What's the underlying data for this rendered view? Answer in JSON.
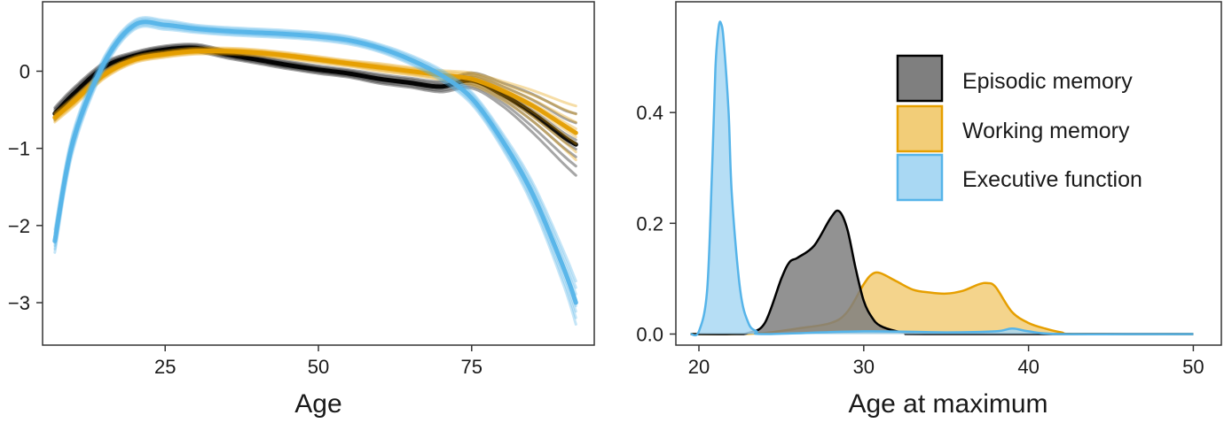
{
  "chart_data": [
    {
      "type": "line",
      "xlabel": "Age",
      "ylabel": "",
      "xlim": [
        5,
        95
      ],
      "ylim": [
        -3.55,
        0.9
      ],
      "xticks": [
        25,
        50,
        75
      ],
      "yticks": [
        0,
        -1,
        -2,
        -3
      ],
      "ytick_labels": [
        "0",
        "−1",
        "−2",
        "−3"
      ],
      "grid": false,
      "legend": "none",
      "colors": {
        "episodic": "#000000",
        "working": "#E69F00",
        "executive": "#56B4E9"
      },
      "series": [
        {
          "key": "episodic",
          "x": [
            7,
            10,
            15,
            20,
            25,
            30,
            35,
            40,
            45,
            50,
            55,
            60,
            65,
            70,
            75,
            80,
            85,
            90,
            92
          ],
          "values": [
            -0.55,
            -0.3,
            0.05,
            0.2,
            0.28,
            0.3,
            0.22,
            0.15,
            0.08,
            0.02,
            -0.03,
            -0.1,
            -0.15,
            -0.2,
            -0.12,
            -0.3,
            -0.55,
            -0.85,
            -0.95
          ],
          "band": [
            0.08,
            0.08,
            0.06,
            0.05,
            0.05,
            0.05,
            0.05,
            0.05,
            0.05,
            0.05,
            0.05,
            0.06,
            0.06,
            0.07,
            0.1,
            0.15,
            0.25,
            0.35,
            0.4
          ]
        },
        {
          "key": "working",
          "x": [
            7,
            10,
            15,
            20,
            25,
            30,
            35,
            40,
            45,
            50,
            55,
            60,
            65,
            70,
            75,
            80,
            85,
            90,
            92
          ],
          "values": [
            -0.6,
            -0.4,
            -0.05,
            0.15,
            0.22,
            0.26,
            0.26,
            0.24,
            0.2,
            0.15,
            0.1,
            0.05,
            0.0,
            -0.05,
            -0.1,
            -0.25,
            -0.45,
            -0.7,
            -0.8
          ],
          "band": [
            0.06,
            0.06,
            0.05,
            0.04,
            0.04,
            0.04,
            0.04,
            0.04,
            0.04,
            0.04,
            0.04,
            0.05,
            0.05,
            0.06,
            0.08,
            0.12,
            0.2,
            0.3,
            0.35
          ]
        },
        {
          "key": "executive",
          "x": [
            7,
            10,
            15,
            20,
            25,
            30,
            35,
            40,
            45,
            50,
            55,
            60,
            65,
            70,
            75,
            80,
            85,
            90,
            92
          ],
          "values": [
            -2.2,
            -0.9,
            0.1,
            0.6,
            0.6,
            0.55,
            0.52,
            0.5,
            0.48,
            0.45,
            0.4,
            0.3,
            0.15,
            -0.05,
            -0.35,
            -0.9,
            -1.6,
            -2.55,
            -3.0
          ],
          "band": [
            0.15,
            0.12,
            0.08,
            0.06,
            0.06,
            0.05,
            0.05,
            0.05,
            0.05,
            0.05,
            0.05,
            0.05,
            0.06,
            0.07,
            0.08,
            0.1,
            0.15,
            0.22,
            0.28
          ]
        }
      ]
    },
    {
      "type": "area",
      "xlabel": "Age at maximum",
      "ylabel": "",
      "xlim": [
        18.6,
        51.7
      ],
      "ylim": [
        -0.02,
        0.6
      ],
      "xticks": [
        20,
        30,
        40,
        50
      ],
      "yticks": [
        0.0,
        0.2,
        0.4
      ],
      "ytick_labels": [
        "0.0",
        "0.2",
        "0.4"
      ],
      "grid": false,
      "legend": "top-right",
      "series": [
        {
          "name": "Working memory",
          "key": "working",
          "line_color": "#E69F00",
          "fill_color": "#F2CD78",
          "x": [
            19.5,
            22,
            24,
            26,
            28,
            29,
            30,
            30.5,
            31,
            32,
            33,
            34,
            35,
            36,
            37,
            37.5,
            38,
            39,
            40,
            41,
            42,
            43,
            50
          ],
          "values": [
            0,
            0,
            0.002,
            0.01,
            0.02,
            0.04,
            0.09,
            0.108,
            0.11,
            0.095,
            0.08,
            0.075,
            0.073,
            0.078,
            0.09,
            0.092,
            0.085,
            0.04,
            0.02,
            0.01,
            0.003,
            0,
            0
          ]
        },
        {
          "name": "Episodic memory",
          "key": "episodic",
          "line_color": "#000000",
          "fill_color": "#7F7F7F",
          "x": [
            19.5,
            22,
            23,
            24,
            25,
            25.5,
            26,
            27,
            28,
            28.5,
            29,
            29.5,
            30,
            30.5,
            31,
            32,
            33,
            34,
            50
          ],
          "values": [
            0,
            0,
            0.002,
            0.02,
            0.1,
            0.13,
            0.138,
            0.16,
            0.21,
            0.222,
            0.19,
            0.12,
            0.06,
            0.03,
            0.015,
            0.005,
            0.001,
            0,
            0
          ]
        },
        {
          "name": "Executive function",
          "key": "executive",
          "line_color": "#56B4E9",
          "fill_color": "#A9D8F3",
          "x": [
            19.5,
            20,
            20.5,
            20.8,
            21,
            21.2,
            21.35,
            21.5,
            21.8,
            22,
            22.5,
            23,
            23.5,
            24,
            30,
            35,
            38,
            39,
            40,
            42,
            50
          ],
          "values": [
            0,
            0.005,
            0.08,
            0.3,
            0.48,
            0.555,
            0.56,
            0.53,
            0.4,
            0.25,
            0.08,
            0.02,
            0.005,
            0,
            0.005,
            0.003,
            0.005,
            0.01,
            0.005,
            0,
            0
          ]
        }
      ],
      "legend_entries": [
        {
          "key": "episodic",
          "label": "Episodic memory",
          "fill_color": "#7F7F7F",
          "line_color": "#000000"
        },
        {
          "key": "working",
          "label": "Working memory",
          "fill_color": "#F2CD78",
          "line_color": "#E69F00"
        },
        {
          "key": "executive",
          "label": "Executive function",
          "fill_color": "#A9D8F3",
          "line_color": "#56B4E9"
        }
      ]
    }
  ]
}
